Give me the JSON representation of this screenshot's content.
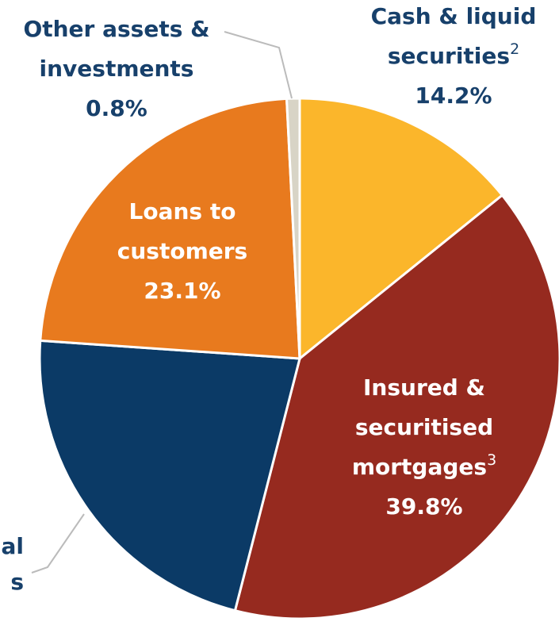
{
  "chart_data": {
    "type": "pie",
    "categories": [
      [
        "Cash & liquid",
        "securities"
      ],
      [
        "Insured &",
        "securitised",
        "mortgages"
      ],
      [
        "al",
        "s"
      ],
      [
        "Loans to",
        "customers"
      ],
      [
        "Other assets &",
        "investments"
      ]
    ],
    "footnotes": [
      [
        "",
        "2"
      ],
      [
        "",
        "",
        "3"
      ],
      null,
      null,
      null
    ],
    "values": [
      14.2,
      39.8,
      22.1,
      23.1,
      0.8
    ],
    "value_labels": [
      "14.2%",
      "39.8%",
      null,
      "23.1%",
      "0.8%"
    ],
    "colors": [
      "#fbb62b",
      "#962a1f",
      "#0b3a66",
      "#e87a1e",
      "#d8d4c6"
    ]
  }
}
